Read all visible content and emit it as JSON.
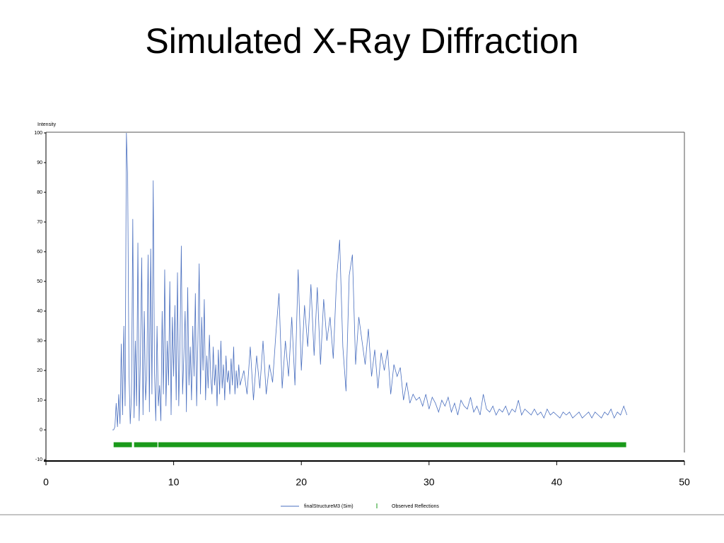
{
  "chart_data": {
    "type": "line",
    "title": "Simulated X-Ray Diffraction",
    "y_label": "Intensity",
    "xlim": [
      0,
      50
    ],
    "xticks": [
      0,
      10,
      20,
      30,
      40,
      50
    ],
    "ylim": [
      -10,
      100
    ],
    "yticks": [
      -10,
      0,
      10,
      20,
      30,
      40,
      50,
      60,
      70,
      80,
      90,
      100
    ],
    "grid": false,
    "x": [
      5.2,
      5.3,
      5.4,
      5.5,
      5.6,
      5.7,
      5.8,
      5.9,
      6.0,
      6.1,
      6.2,
      6.3,
      6.4,
      6.5,
      6.6,
      6.7,
      6.8,
      6.9,
      7.0,
      7.1,
      7.2,
      7.3,
      7.4,
      7.5,
      7.6,
      7.7,
      7.8,
      7.9,
      8.0,
      8.1,
      8.2,
      8.3,
      8.4,
      8.5,
      8.6,
      8.7,
      8.8,
      8.9,
      9.0,
      9.1,
      9.2,
      9.3,
      9.4,
      9.5,
      9.6,
      9.7,
      9.8,
      9.9,
      10.0,
      10.1,
      10.2,
      10.3,
      10.4,
      10.5,
      10.6,
      10.7,
      10.8,
      10.9,
      11.0,
      11.1,
      11.2,
      11.3,
      11.4,
      11.5,
      11.6,
      11.7,
      11.8,
      11.9,
      12.0,
      12.1,
      12.2,
      12.3,
      12.4,
      12.5,
      12.6,
      12.7,
      12.8,
      12.9,
      13.0,
      13.1,
      13.2,
      13.3,
      13.4,
      13.5,
      13.6,
      13.7,
      13.8,
      13.9,
      14.0,
      14.1,
      14.2,
      14.3,
      14.4,
      14.5,
      14.6,
      14.7,
      14.8,
      14.9,
      15.0,
      15.1,
      15.2,
      15.5,
      15.75,
      16.0,
      16.25,
      16.5,
      16.75,
      17.0,
      17.25,
      17.5,
      17.75,
      18.0,
      18.25,
      18.5,
      18.75,
      19.0,
      19.25,
      19.5,
      19.75,
      20.0,
      20.25,
      20.5,
      20.75,
      21.0,
      21.25,
      21.5,
      21.75,
      22.0,
      22.25,
      22.5,
      22.75,
      23.0,
      23.25,
      23.5,
      23.75,
      24.0,
      24.25,
      24.5,
      24.75,
      25.0,
      25.25,
      25.5,
      25.75,
      26.0,
      26.25,
      26.5,
      26.75,
      27.0,
      27.25,
      27.5,
      27.75,
      28.0,
      28.25,
      28.5,
      28.75,
      29.0,
      29.25,
      29.5,
      29.75,
      30.0,
      30.25,
      30.5,
      30.75,
      31.0,
      31.25,
      31.5,
      31.75,
      32.0,
      32.25,
      32.5,
      32.75,
      33.0,
      33.25,
      33.5,
      33.75,
      34.0,
      34.25,
      34.5,
      34.75,
      35.0,
      35.25,
      35.5,
      35.75,
      36.0,
      36.25,
      36.5,
      36.75,
      37.0,
      37.25,
      37.5,
      37.75,
      38.0,
      38.25,
      38.5,
      38.75,
      39.0,
      39.25,
      39.5,
      39.75,
      40.0,
      40.25,
      40.5,
      40.75,
      41.0,
      41.25,
      41.5,
      41.75,
      42.0,
      42.25,
      42.5,
      42.75,
      43.0,
      43.25,
      43.5,
      43.75,
      44.0,
      44.25,
      44.5,
      44.75,
      45.0,
      45.25,
      45.5
    ],
    "series": [
      {
        "name": "finalStructureM3 (Sim)",
        "color": "#4a6fbf",
        "values": [
          0,
          0,
          1,
          9,
          1,
          12,
          2,
          29,
          5,
          35,
          8,
          100,
          85,
          20,
          2,
          12,
          71,
          4,
          30,
          8,
          63,
          3,
          25,
          58,
          5,
          40,
          10,
          18,
          59,
          6,
          61,
          12,
          84,
          20,
          3,
          35,
          8,
          15,
          3,
          40,
          12,
          54,
          8,
          30,
          15,
          50,
          5,
          38,
          18,
          42,
          10,
          53,
          8,
          30,
          62,
          12,
          25,
          40,
          6,
          48,
          15,
          28,
          10,
          35,
          18,
          46,
          8,
          30,
          56,
          12,
          38,
          20,
          44,
          10,
          25,
          14,
          32,
          18,
          12,
          28,
          15,
          22,
          8,
          27,
          12,
          30,
          14,
          22,
          10,
          25,
          16,
          20,
          12,
          24,
          15,
          28,
          12,
          20,
          14,
          22,
          15,
          20,
          12,
          28,
          10,
          25,
          14,
          30,
          12,
          22,
          16,
          32,
          46,
          14,
          30,
          18,
          38,
          15,
          54,
          20,
          42,
          28,
          49,
          25,
          48,
          22,
          44,
          30,
          38,
          24,
          50,
          64,
          28,
          13,
          52,
          59,
          22,
          38,
          30,
          22,
          34,
          18,
          27,
          14,
          26,
          20,
          27,
          12,
          22,
          18,
          21,
          10,
          16,
          9,
          12,
          10,
          11,
          8,
          12,
          7,
          11,
          9,
          6,
          10,
          8,
          11,
          6,
          9,
          5,
          10,
          8,
          7,
          11,
          6,
          8,
          5,
          12,
          7,
          6,
          8,
          5,
          7,
          6,
          8,
          5,
          7,
          6,
          10,
          5,
          7,
          6,
          5,
          7,
          5,
          6,
          4,
          7,
          5,
          6,
          5,
          4,
          6,
          5,
          6,
          4,
          5,
          6,
          4,
          5,
          6,
          4,
          6,
          5,
          4,
          6,
          5,
          7,
          4,
          6,
          5,
          8,
          5
        ]
      }
    ],
    "reflections": {
      "name": "Observed Reflections",
      "color": "#1a9a1a",
      "y": -5,
      "x": [
        5.3,
        5.6,
        5.9,
        6.1,
        6.4,
        6.9,
        7.2,
        7.4,
        7.6,
        7.9,
        8.2,
        8.4,
        8.8,
        9.0,
        9.2,
        9.4,
        9.6,
        9.8,
        10.0,
        10.2,
        10.4,
        10.6,
        10.8,
        11.0,
        11.2,
        11.4,
        11.6,
        11.8,
        12.0,
        12.2,
        12.4,
        12.6,
        12.8,
        13.0,
        13.2,
        13.4,
        13.6,
        13.8,
        14.0,
        14.2,
        14.4,
        14.6,
        14.8,
        15.0,
        15.3,
        15.6,
        15.9,
        16.2,
        16.5,
        16.8,
        17.1,
        17.4,
        17.7,
        18.0,
        18.3,
        18.6,
        18.9,
        19.2,
        19.5,
        19.8,
        20.1,
        20.4,
        20.7,
        21.0,
        21.3,
        21.6,
        21.9,
        22.2,
        22.5,
        22.8,
        23.1,
        23.4,
        23.7,
        24.0,
        24.3,
        24.6,
        24.9,
        25.2,
        25.5,
        25.8,
        26.1,
        26.4,
        26.7,
        27.0,
        27.3,
        27.6,
        27.9,
        28.2,
        28.5,
        28.8,
        29.1,
        29.4,
        29.7,
        30.0,
        30.3,
        30.6,
        30.9,
        31.2,
        31.5,
        31.8,
        32.1,
        32.4,
        32.7,
        33.0,
        33.3,
        33.6,
        33.9,
        34.2,
        34.5,
        34.8,
        35.1,
        35.4,
        35.7,
        36.0,
        36.3,
        36.6,
        36.9,
        37.2,
        37.5,
        37.8,
        38.1,
        38.4,
        38.7,
        39.0,
        39.3,
        39.6,
        39.9,
        40.2,
        40.5,
        40.8,
        41.1,
        41.4,
        41.7,
        42.0,
        42.3,
        42.6,
        42.9,
        43.2,
        43.5,
        43.8,
        44.1,
        44.4,
        44.7,
        45.0,
        45.3
      ]
    }
  }
}
